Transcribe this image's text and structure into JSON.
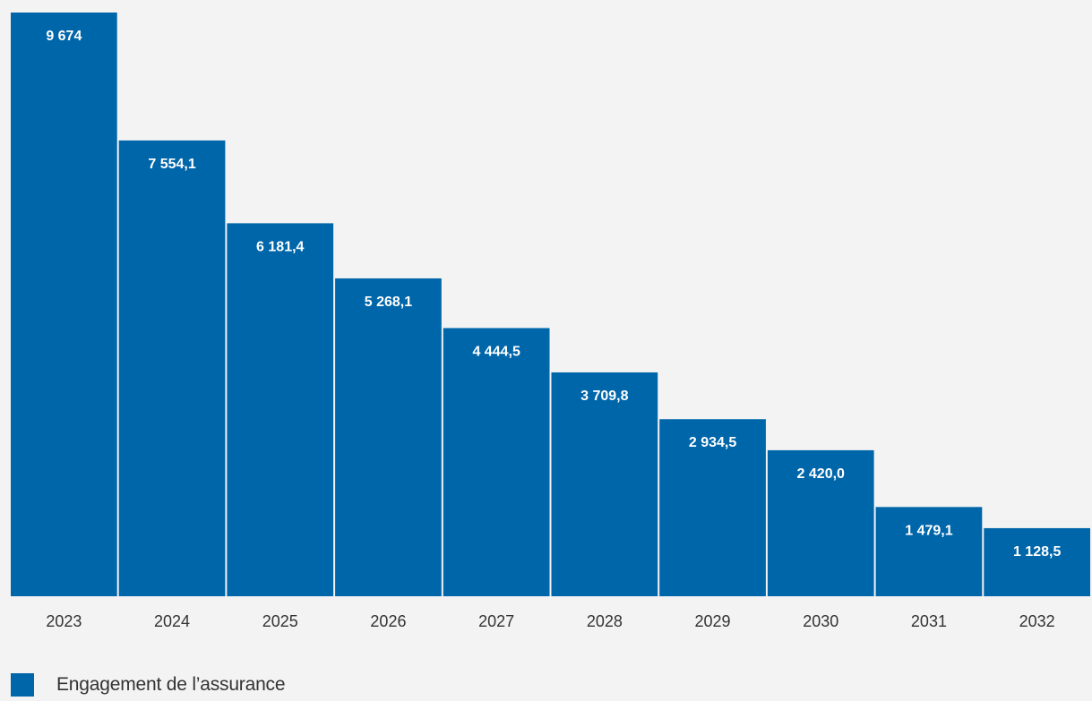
{
  "chart_data": {
    "type": "bar",
    "categories": [
      "2023",
      "2024",
      "2025",
      "2026",
      "2027",
      "2028",
      "2029",
      "2030",
      "2031",
      "2032"
    ],
    "values": [
      9674,
      7554.1,
      6181.4,
      5268.1,
      4444.5,
      3709.8,
      2934.5,
      2420.0,
      1479.1,
      1128.5
    ],
    "data_labels": [
      "9 674",
      "7 554,1",
      "6 181,4",
      "5 268,1",
      "4 444,5",
      "3 709,8",
      "2 934,5",
      "2 420,0",
      "1 479,1",
      "1 128,5"
    ],
    "series": [
      {
        "name": "Engagement de l’assurance",
        "values": [
          9674,
          7554.1,
          6181.4,
          5268.1,
          4444.5,
          3709.8,
          2934.5,
          2420.0,
          1479.1,
          1128.5
        ]
      }
    ],
    "title": "",
    "xlabel": "",
    "ylabel": "",
    "ylim": [
      0,
      9674
    ],
    "grid": false,
    "legend_position": "bottom-left",
    "colors": {
      "bar": "#0066aa",
      "background": "#f3f3f3",
      "label": "#ffffff",
      "tick": "#333333"
    }
  },
  "legend": {
    "label": "Engagement de l’assurance"
  }
}
